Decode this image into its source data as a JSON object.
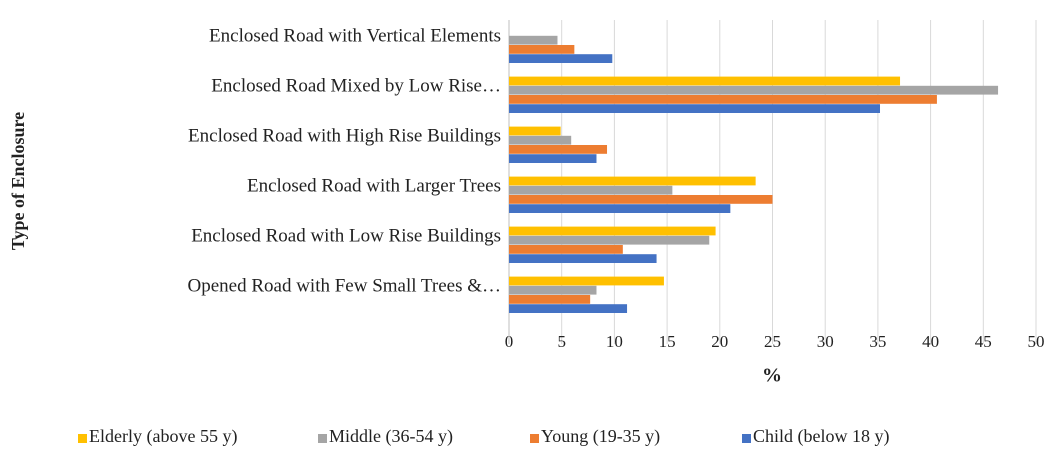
{
  "chart_data": {
    "type": "bar",
    "orientation": "horizontal",
    "y_label": "Type of Enclosure",
    "x_label": "%",
    "categories": [
      "Enclosed Road with Vertical Elements",
      "Enclosed Road Mixed by Low Rise…",
      "Enclosed Road with High Rise Buildings",
      "Enclosed Road with Larger Trees",
      "Enclosed Road with Low Rise Buildings",
      "Opened Road with Few Small Trees &…"
    ],
    "series": [
      {
        "name": "Elderly (above 55 y)",
        "color": "#ffc000",
        "values": [
          0,
          37.1,
          4.9,
          23.4,
          19.6,
          14.7
        ]
      },
      {
        "name": "Middle (36-54 y)",
        "color": "#a5a5a5",
        "values": [
          4.6,
          46.4,
          5.9,
          15.5,
          19.0,
          8.3
        ]
      },
      {
        "name": "Young (19-35 y)",
        "color": "#ed7d31",
        "values": [
          6.2,
          40.6,
          9.3,
          25.0,
          10.8,
          7.7
        ]
      },
      {
        "name": "Child (below 18 y)",
        "color": "#4472c4",
        "values": [
          9.8,
          35.2,
          8.3,
          21.0,
          14.0,
          11.2
        ]
      }
    ],
    "xlim": [
      0,
      50
    ],
    "xticks": [
      0,
      5,
      10,
      15,
      20,
      25,
      30,
      35,
      40,
      45,
      50
    ],
    "grid": true,
    "legend": "bottom"
  }
}
